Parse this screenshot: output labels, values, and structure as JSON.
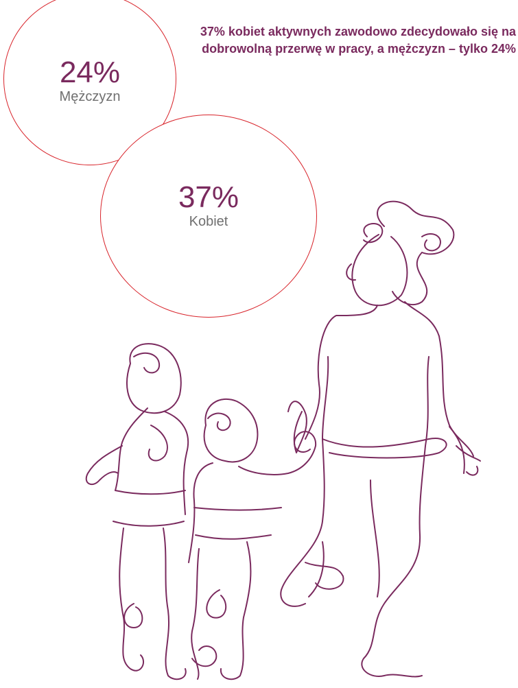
{
  "headline": "37% kobiet aktywnych zawodowo zdecydowało się na dobrowolną przerwę w pracy, a mężczyzn – tylko 24%",
  "stats": [
    {
      "value": "24%",
      "label": "Mężczyzn"
    },
    {
      "value": "37%",
      "label": "Kobiet"
    }
  ],
  "colors": {
    "accent": "#7a2a5e",
    "circle_border": "#d8232a",
    "label": "#6f6f6f"
  },
  "illustration": "line-drawing-family-running-icon"
}
